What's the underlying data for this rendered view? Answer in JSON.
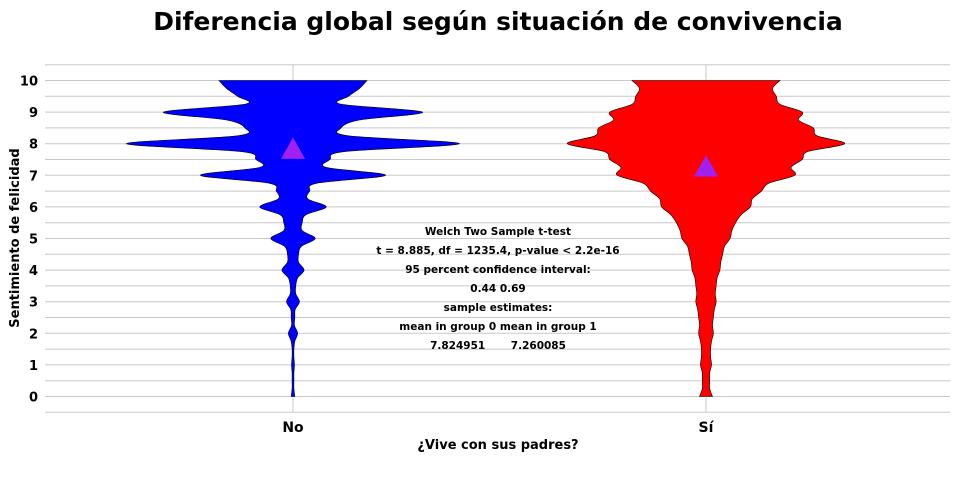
{
  "chart_data": {
    "type": "violin",
    "title": "Diferencia global según situación de convivencia",
    "xlabel": "¿Vive con sus padres?",
    "ylabel": "Sentimiento de felicidad",
    "categories": [
      "No",
      "Sí"
    ],
    "colors": {
      "No": "#0000ff",
      "Sí": "#ff0000",
      "mean_marker": "#a020f0"
    },
    "ylim": [
      -0.5,
      10.5
    ],
    "yticks": [
      0,
      1,
      2,
      3,
      4,
      5,
      6,
      7,
      8,
      9,
      10
    ],
    "grid": true,
    "means": [
      {
        "group": "No",
        "value": 7.824951
      },
      {
        "group": "Sí",
        "value": 7.260085
      }
    ],
    "density_widths": {
      "y": [
        0,
        0.25,
        0.5,
        0.75,
        1,
        1.25,
        1.5,
        1.75,
        2,
        2.25,
        2.5,
        2.75,
        3,
        3.25,
        3.5,
        3.75,
        4,
        4.25,
        4.5,
        4.75,
        5,
        5.25,
        5.5,
        5.75,
        6,
        6.25,
        6.5,
        6.75,
        7,
        7.25,
        7.5,
        7.75,
        8,
        8.25,
        8.5,
        8.75,
        9,
        9.25,
        9.5,
        9.75,
        10
      ],
      "No": [
        0.01,
        0.005,
        0.005,
        0.005,
        0.008,
        0.005,
        0.005,
        0.01,
        0.025,
        0.008,
        0.01,
        0.012,
        0.035,
        0.015,
        0.015,
        0.025,
        0.06,
        0.03,
        0.03,
        0.045,
        0.12,
        0.05,
        0.05,
        0.07,
        0.18,
        0.08,
        0.09,
        0.13,
        0.5,
        0.18,
        0.2,
        0.28,
        0.9,
        0.3,
        0.26,
        0.36,
        0.7,
        0.26,
        0.3,
        0.36,
        0.4
      ],
      "Sí": [
        0.035,
        0.02,
        0.02,
        0.02,
        0.03,
        0.025,
        0.025,
        0.03,
        0.04,
        0.035,
        0.04,
        0.045,
        0.055,
        0.05,
        0.055,
        0.06,
        0.075,
        0.08,
        0.09,
        0.1,
        0.13,
        0.14,
        0.16,
        0.19,
        0.24,
        0.25,
        0.3,
        0.34,
        0.48,
        0.46,
        0.52,
        0.55,
        0.75,
        0.6,
        0.58,
        0.5,
        0.52,
        0.4,
        0.38,
        0.36,
        0.4
      ]
    },
    "annotation": [
      "Welch Two Sample t-test",
      "t = 8.885, df = 1235.4, p-value < 2.2e-16",
      "95 percent confidence interval:",
      "0.44 0.69",
      "sample estimates:",
      "mean in group 0 mean in group 1",
      "7.824951       7.260085"
    ]
  }
}
